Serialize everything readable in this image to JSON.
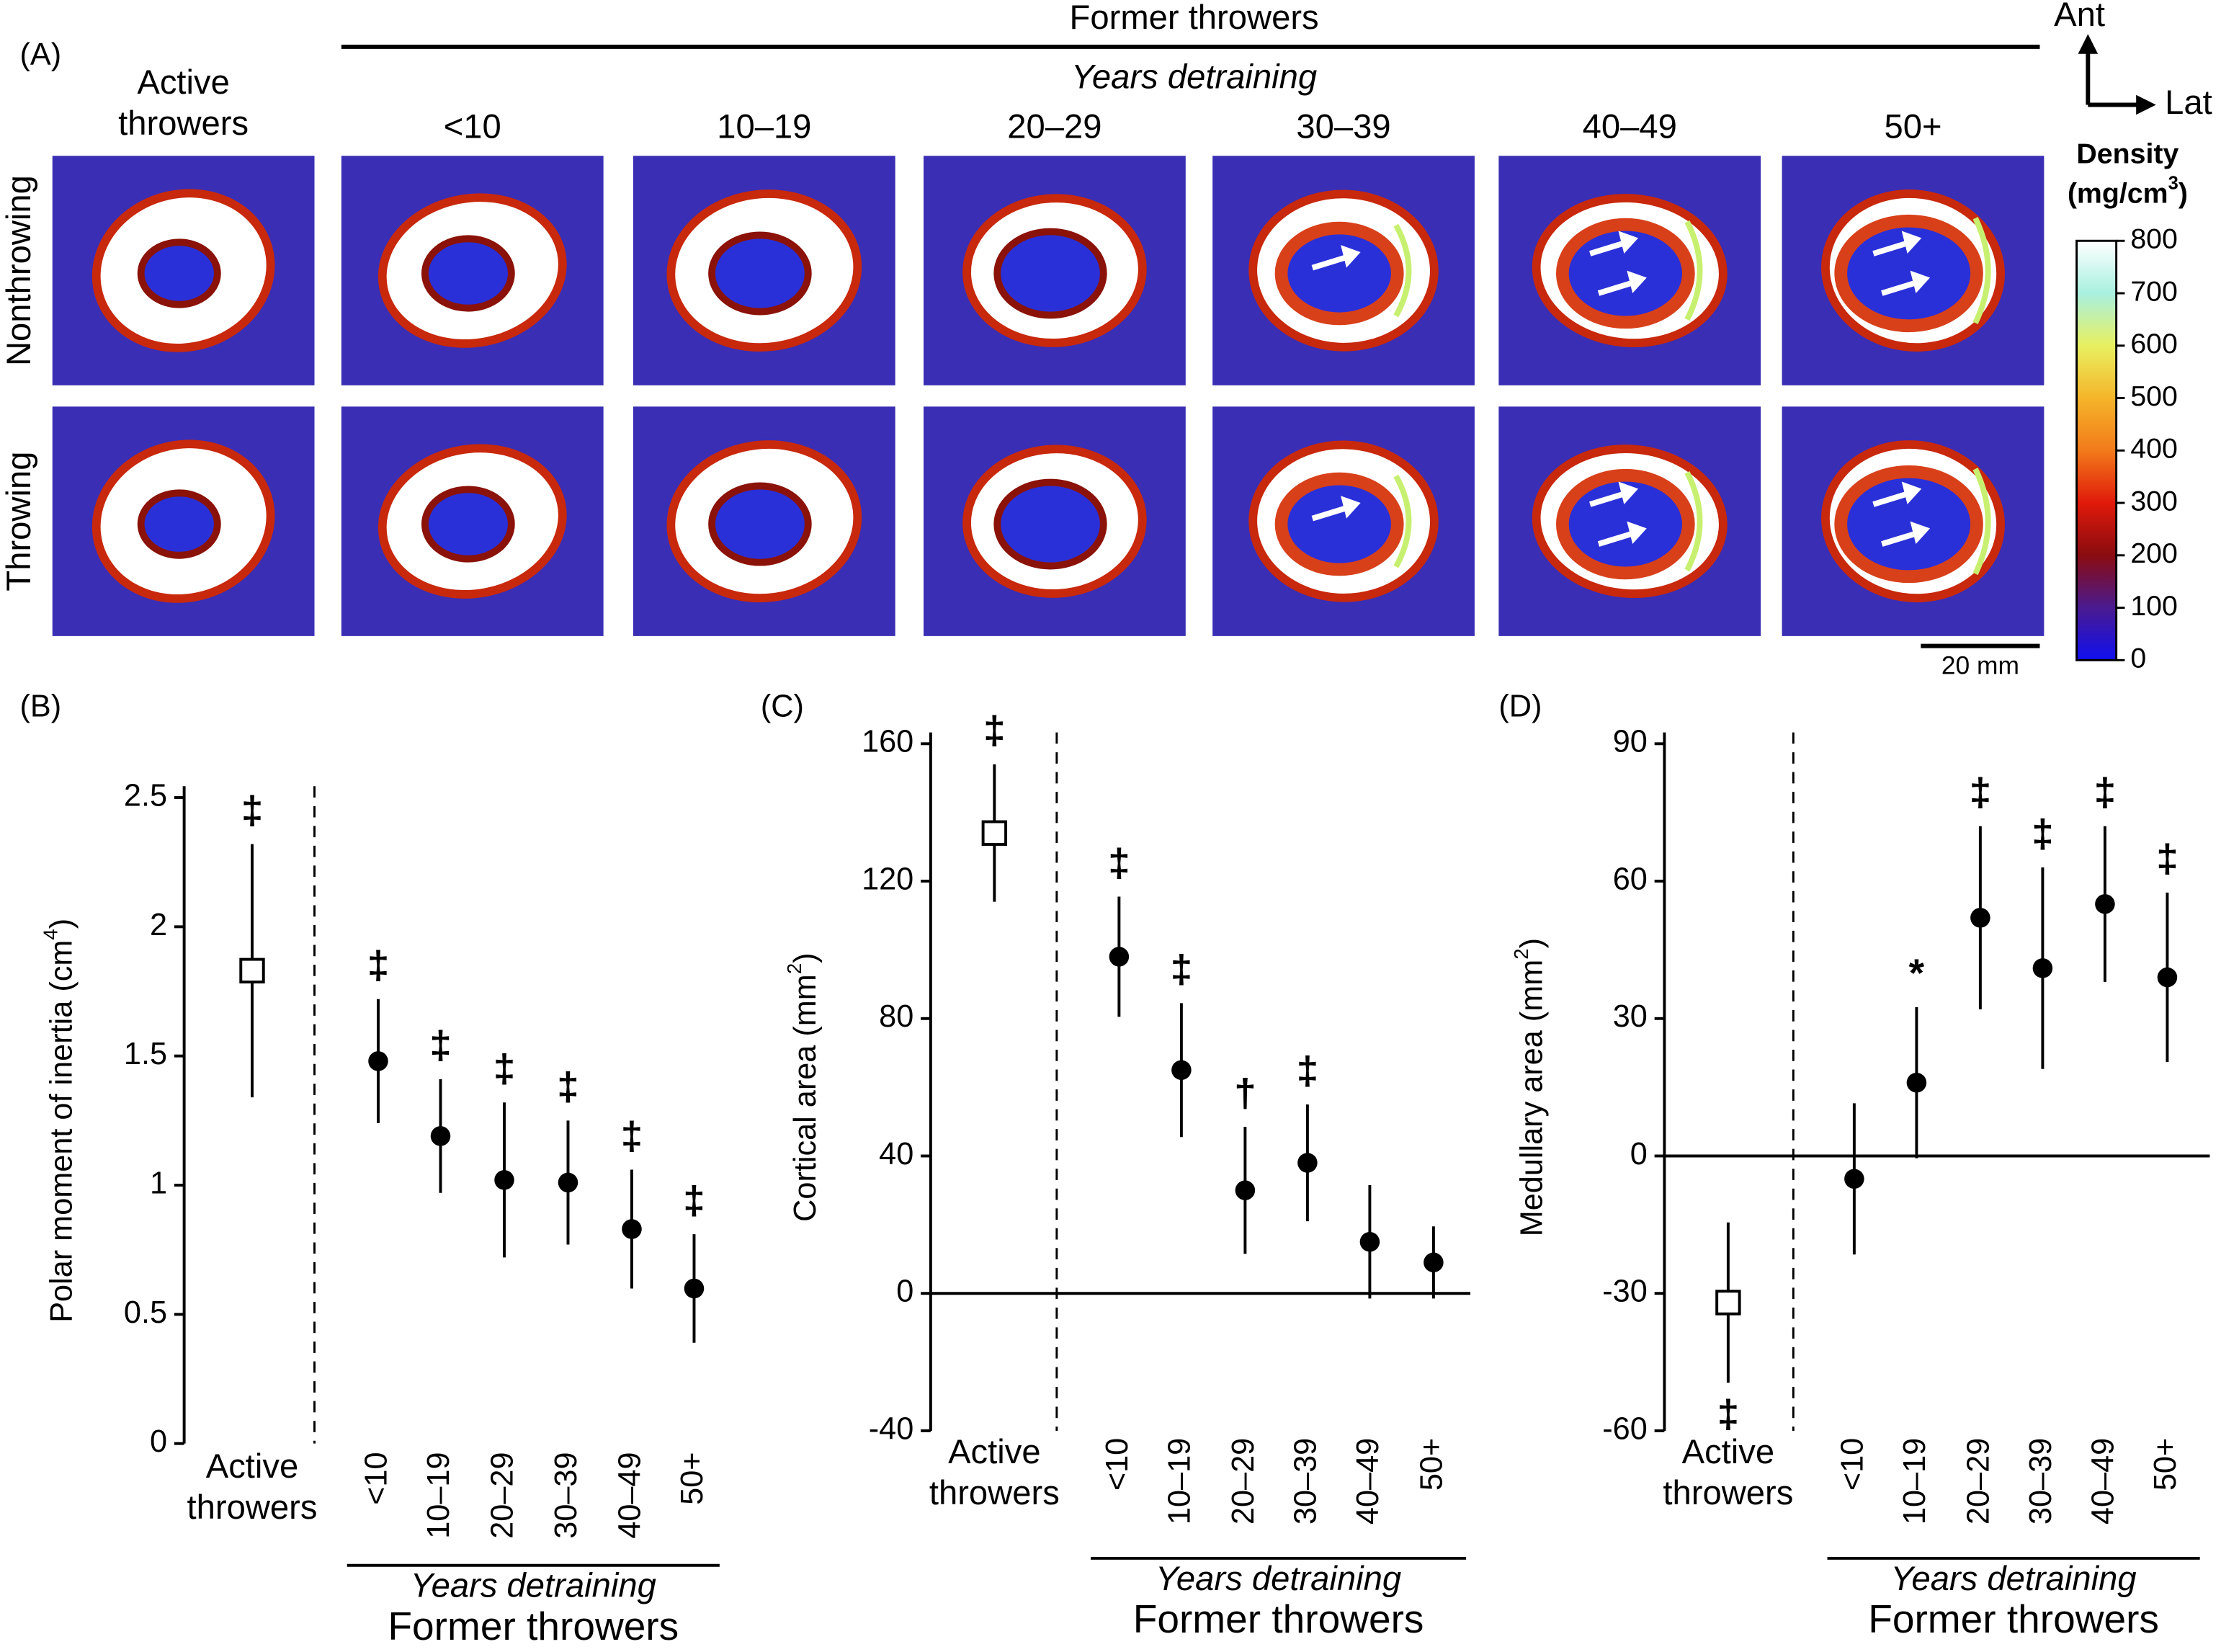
{
  "panel_a": {
    "label": "(A)",
    "group_title": "Former throwers",
    "subtitle": "Years detraining",
    "columns": [
      "Active throwers",
      "<10",
      "10–19",
      "20–29",
      "30–39",
      "40–49",
      "50+"
    ],
    "rows": [
      "Nonthrowing",
      "Throwing"
    ],
    "orientation": {
      "up": "Ant",
      "right": "Lat"
    },
    "colorbar": {
      "title": "Density",
      "unit": [
        "(mg/cm",
        "3",
        ")"
      ],
      "lim": [
        0,
        800
      ],
      "ticks": [
        0,
        100,
        200,
        300,
        400,
        500,
        600,
        700,
        800
      ]
    },
    "scale_bar": "20 mm"
  },
  "chart_data": [
    {
      "type": "errorbar",
      "label": "(B)",
      "ylabel": [
        "Polar moment of inertia (cm",
        "4",
        ")"
      ],
      "categories": [
        "Active throwers",
        "<10",
        "10–19",
        "20–29",
        "30–39",
        "40–49",
        "50+"
      ],
      "values": [
        1.83,
        1.48,
        1.19,
        1.02,
        1.01,
        0.83,
        0.6
      ],
      "errors": [
        0.49,
        0.24,
        0.22,
        0.3,
        0.24,
        0.23,
        0.21
      ],
      "markers": [
        "square",
        "circle",
        "circle",
        "circle",
        "circle",
        "circle",
        "circle"
      ],
      "annotations": [
        "‡",
        "‡",
        "‡",
        "‡",
        "‡",
        "‡",
        "‡"
      ],
      "ylim": [
        0,
        2.5
      ],
      "yticks": [
        0,
        0.5,
        1,
        1.5,
        2,
        2.5
      ],
      "group_subtitle": "Years detraining",
      "group_title": "Former throwers"
    },
    {
      "type": "errorbar",
      "label": "(C)",
      "ylabel": [
        "Cortical area (mm",
        "2",
        ")"
      ],
      "categories": [
        "Active throwers",
        "<10",
        "10–19",
        "20–29",
        "30–39",
        "40–49",
        "50+"
      ],
      "values": [
        134,
        98,
        65,
        30,
        38,
        15,
        9
      ],
      "errors": [
        20,
        17.5,
        19.5,
        18.5,
        17,
        16.5,
        10.5
      ],
      "markers": [
        "square",
        "circle",
        "circle",
        "circle",
        "circle",
        "circle",
        "circle"
      ],
      "annotations": [
        "‡",
        "‡",
        "‡",
        "†",
        "‡",
        null,
        null
      ],
      "ylim": [
        -40,
        160
      ],
      "yticks": [
        -40,
        0,
        40,
        80,
        120,
        160
      ],
      "group_subtitle": "Years detraining",
      "group_title": "Former throwers"
    },
    {
      "type": "errorbar",
      "label": "(D)",
      "ylabel": [
        "Medullary area (mm",
        "2",
        ")"
      ],
      "categories": [
        "Active throwers",
        "<10",
        "10–19",
        "20–29",
        "30–39",
        "40–49",
        "50+"
      ],
      "values": [
        -32,
        -5,
        16,
        52,
        41,
        55,
        39
      ],
      "errors": [
        17.5,
        16.5,
        16.5,
        20,
        22,
        17,
        18.5
      ],
      "markers": [
        "square",
        "circle",
        "circle",
        "circle",
        "circle",
        "circle",
        "circle"
      ],
      "annotations": [
        "‡",
        null,
        "*",
        "‡",
        "‡",
        "‡",
        "‡"
      ],
      "ylim": [
        -60,
        90
      ],
      "yticks": [
        -60,
        -30,
        0,
        30,
        60,
        90
      ],
      "group_subtitle": "Years detraining",
      "group_title": "Former throwers"
    }
  ]
}
